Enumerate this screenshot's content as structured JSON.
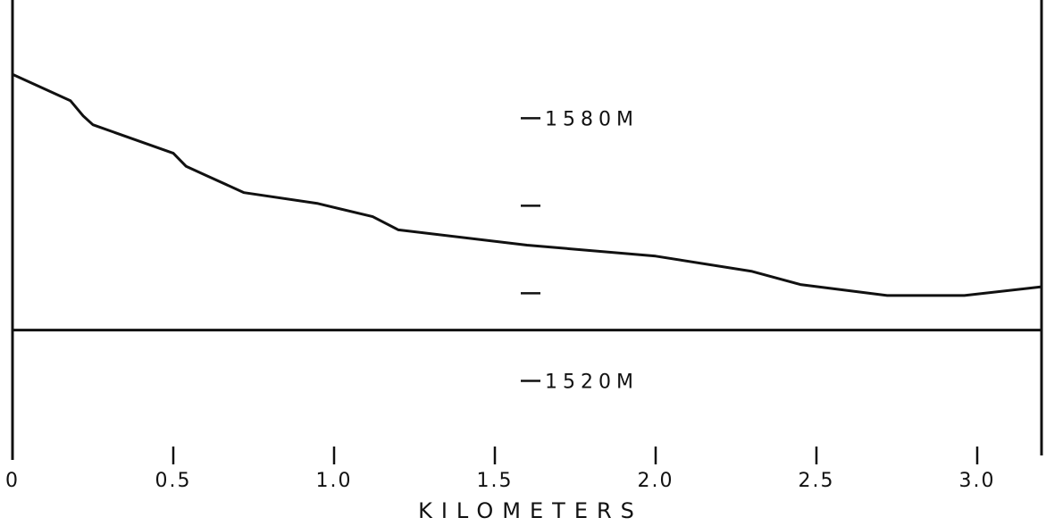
{
  "chart_data": {
    "type": "line",
    "title": "",
    "xlabel": "KILOMETERS",
    "ylabel": "",
    "x_ticks": [
      {
        "value": 0,
        "label": "0"
      },
      {
        "value": 0.5,
        "label": "0.5"
      },
      {
        "value": 1.0,
        "label": "1.0"
      },
      {
        "value": 1.5,
        "label": "1.5"
      },
      {
        "value": 2.0,
        "label": "2.0"
      },
      {
        "value": 2.5,
        "label": "2.5"
      },
      {
        "value": 3.0,
        "label": "3.0"
      }
    ],
    "y_ticks": [
      {
        "value": 1580,
        "label": "1580M"
      },
      {
        "value": 1560,
        "label": ""
      },
      {
        "value": 1540,
        "label": ""
      },
      {
        "value": 1520,
        "label": "1520M"
      }
    ],
    "xlim": [
      0,
      3.2
    ],
    "ylim": [
      1505,
      1607
    ],
    "baseline_y": 1531.6,
    "series": [
      {
        "x": [
          0,
          0.18,
          0.22,
          0.25,
          0.5,
          0.54,
          0.6,
          0.72,
          0.95,
          1.12,
          1.2,
          1.6,
          2.0,
          2.3,
          2.45,
          2.72,
          2.96,
          3.2
        ],
        "y": [
          1590,
          1584,
          1580.5,
          1578.5,
          1572,
          1569,
          1567,
          1563,
          1560.5,
          1557.5,
          1554.5,
          1551,
          1548.5,
          1545,
          1542,
          1539.5,
          1539.5,
          1541.5
        ]
      }
    ]
  },
  "colors": {
    "line": "#111111",
    "background": "#ffffff"
  }
}
